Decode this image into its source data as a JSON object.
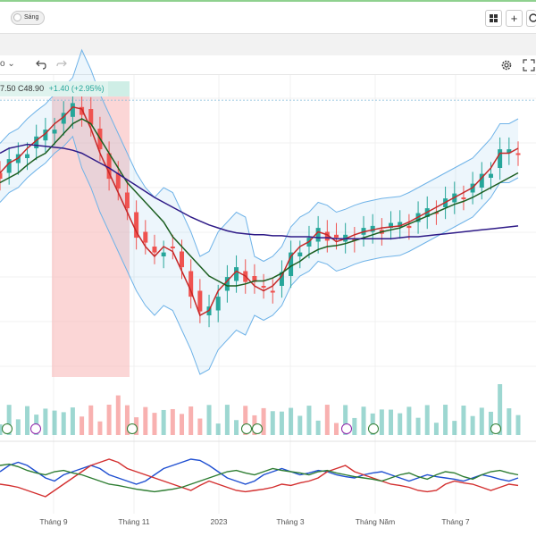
{
  "toolbar": {
    "theme_toggle_label": "Sáng",
    "grid_icon": "grid-icon",
    "add_icon": "plus-icon",
    "search_icon": "search-icon",
    "interval_fragment": "o",
    "undo_icon": "undo-icon",
    "redo_icon": "redo-icon",
    "settings_icon": "gear-icon",
    "fullscreen_icon": "fullscreen-icon"
  },
  "legend": {
    "open_fragment": "7.50",
    "close_label": "C48.90",
    "change_label": "+1.40 (+2.95%)"
  },
  "colors": {
    "up": "#26a69a",
    "down": "#ef5350",
    "ma_fast": "#c62828",
    "ma_mid": "#1b5e20",
    "ma_slow": "#2e1a87",
    "bollinger": "#6fb3e8",
    "highlight": "#f8b4b4"
  },
  "chart_data": {
    "type": "line",
    "x_tick_labels": [
      "Tháng 9",
      "Tháng 11",
      "2023",
      "Tháng 3",
      "Tháng Năm",
      "Tháng 7"
    ],
    "last_price": 48.9,
    "price_change": 1.4,
    "price_change_pct": 2.95,
    "series": [
      {
        "values": [
          41.5,
          42.5,
          43.0,
          44.0,
          44.8,
          45.5,
          46.5,
          47.2,
          48.2,
          48.0,
          46.0,
          43.5,
          41.5,
          39.5,
          37.5,
          35.5,
          34.0,
          33.0,
          34.0,
          33.5,
          31.5,
          29.5,
          27.0,
          27.5,
          29.5,
          30.5,
          31.5,
          31.0,
          30.0,
          29.5,
          30.0,
          31.0,
          33.0,
          34.0,
          34.5,
          35.5,
          35.2,
          34.5,
          34.8,
          35.2,
          35.5,
          35.7,
          35.9,
          36.0,
          36.1,
          36.5,
          37.0,
          37.5,
          38.0,
          38.5,
          39.0,
          39.5,
          40.0,
          41.0,
          42.0,
          43.5,
          43.5,
          44.0
        ]
      },
      {
        "values": [
          40.5,
          41.0,
          41.5,
          42.3,
          43.0,
          43.5,
          44.5,
          45.5,
          46.5,
          47.0,
          46.5,
          45.0,
          43.5,
          42.0,
          40.5,
          39.5,
          38.5,
          37.5,
          36.5,
          35.0,
          34.0,
          33.0,
          32.0,
          31.0,
          30.5,
          30.0,
          30.0,
          30.2,
          30.5,
          30.5,
          30.8,
          31.3,
          32.0,
          32.5,
          33.2,
          33.7,
          34.0,
          34.1,
          34.3,
          34.6,
          34.9,
          35.2,
          35.5,
          35.7,
          35.9,
          36.3,
          36.7,
          37.1,
          37.5,
          37.9,
          38.3,
          38.6,
          39.0,
          39.5,
          40.0,
          40.5,
          41.0,
          41.5
        ]
      },
      {
        "values": [
          43.5,
          44.0,
          44.2,
          44.4,
          44.3,
          44.2,
          44.1,
          44.0,
          43.8,
          43.5,
          43.0,
          42.5,
          42.0,
          41.4,
          40.8,
          40.2,
          39.6,
          39.0,
          38.5,
          38.0,
          37.5,
          37.0,
          36.6,
          36.2,
          35.9,
          35.6,
          35.4,
          35.3,
          35.2,
          35.2,
          35.1,
          35.1,
          35.0,
          35.0,
          35.0,
          34.9,
          34.9,
          34.8,
          34.8,
          34.8,
          34.8,
          34.8,
          34.8,
          34.8,
          34.9,
          35.0,
          35.0,
          35.1,
          35.2,
          35.3,
          35.4,
          35.5,
          35.6,
          35.7,
          35.8,
          35.9,
          36.0,
          36.1
        ]
      }
    ],
    "oscillator": [
      {
        "values": [
          60,
          70,
          75,
          70,
          60,
          50,
          45,
          55,
          60,
          65,
          70,
          65,
          55,
          50,
          45,
          40,
          45,
          55,
          65,
          70,
          75,
          80,
          78,
          70,
          60,
          50,
          45,
          40,
          45,
          55,
          60,
          65,
          60,
          55,
          58,
          62,
          60,
          55,
          52,
          50,
          55,
          58,
          60,
          55,
          50,
          45,
          50,
          55,
          52,
          50,
          48,
          45,
          50,
          55,
          52,
          48,
          45,
          50
        ]
      },
      {
        "values": [
          40,
          38,
          35,
          30,
          25,
          20,
          30,
          40,
          50,
          60,
          70,
          75,
          80,
          75,
          65,
          60,
          55,
          50,
          45,
          40,
          35,
          30,
          38,
          45,
          40,
          35,
          30,
          28,
          30,
          32,
          35,
          40,
          38,
          42,
          45,
          50,
          60,
          65,
          70,
          60,
          55,
          50,
          45,
          40,
          38,
          35,
          30,
          28,
          30,
          40,
          45,
          42,
          40,
          35,
          30,
          35,
          40,
          38
        ]
      },
      {
        "values": [
          70,
          72,
          68,
          62,
          58,
          55,
          60,
          62,
          58,
          55,
          50,
          45,
          40,
          38,
          35,
          32,
          30,
          28,
          30,
          32,
          35,
          40,
          45,
          50,
          55,
          60,
          62,
          58,
          55,
          60,
          65,
          62,
          60,
          58,
          55,
          60,
          62,
          58,
          55,
          52,
          50,
          48,
          45,
          50,
          55,
          58,
          52,
          48,
          55,
          60,
          58,
          52,
          48,
          55,
          60,
          62,
          58,
          55
        ]
      },
      {
        "values": [
          20,
          22,
          25,
          30,
          35,
          28,
          25,
          30,
          35,
          40,
          50,
          55,
          60,
          62,
          60,
          55,
          58,
          60,
          62,
          60,
          55,
          50,
          45,
          40,
          35,
          30,
          28,
          30,
          32,
          35,
          40,
          38,
          35,
          38,
          40,
          42,
          38,
          35,
          40,
          42,
          45,
          40,
          38,
          35,
          30,
          28,
          32,
          35,
          38,
          40,
          35,
          32,
          30,
          28,
          25,
          30,
          35,
          32
        ]
      }
    ]
  }
}
